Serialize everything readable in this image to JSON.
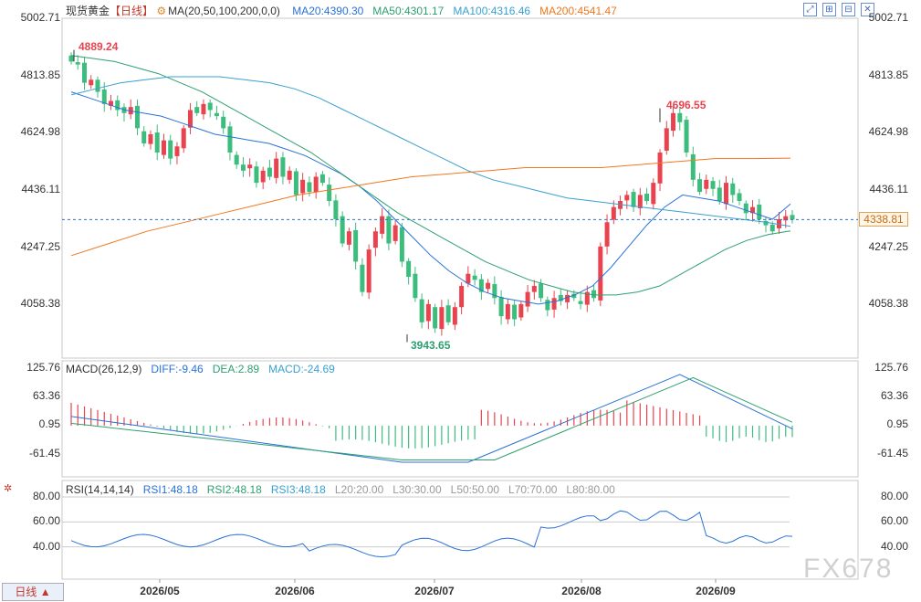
{
  "header": {
    "symbol": "现货黄金",
    "period_label": "【日线】",
    "ma_label": "MA(20,50,100,200,0,0)",
    "ma_values": [
      {
        "text": "MA20:4390.30",
        "color": "#2a72d8"
      },
      {
        "text": "MA50:4301.17",
        "color": "#2ea070"
      },
      {
        "text": "MA100:4316.46",
        "color": "#3aa0d0"
      },
      {
        "text": "MA200:4541.47",
        "color": "#f07820"
      }
    ]
  },
  "toolbar_icons": [
    "expand-icon",
    "tile-icon",
    "split-icon",
    "close-icon"
  ],
  "price_axis": {
    "ticks": [
      "5002.71",
      "4813.85",
      "4624.98",
      "4436.11",
      "4247.25",
      "4058.38"
    ]
  },
  "current_price": "4338.81",
  "annotations": {
    "high": "4889.24",
    "recent_high": "4696.55",
    "low": "3943.65"
  },
  "macd": {
    "header": [
      {
        "text": "MACD(26,12,9)",
        "color": "#333333"
      },
      {
        "text": "DIFF:-9.46",
        "color": "#2a72d8"
      },
      {
        "text": "DEA:2.89",
        "color": "#2ea070"
      },
      {
        "text": "MACD:-24.69",
        "color": "#3aa0d0"
      }
    ],
    "ticks": [
      "125.76",
      "63.36",
      "0.95",
      "-61.45"
    ]
  },
  "rsi": {
    "header": [
      {
        "text": "RSI(14,14,14)",
        "color": "#333333"
      },
      {
        "text": "RSI1:48.18",
        "color": "#2a72d8"
      },
      {
        "text": "RSI2:48.18",
        "color": "#2ea070"
      },
      {
        "text": "RSI3:48.18",
        "color": "#3aa0d0"
      },
      {
        "text": "L20:20.00",
        "color": "#999999"
      },
      {
        "text": "L30:30.00",
        "color": "#999999"
      },
      {
        "text": "L50:50.00",
        "color": "#999999"
      },
      {
        "text": "L70:70.00",
        "color": "#999999"
      },
      {
        "text": "L80:80.00",
        "color": "#999999"
      }
    ],
    "ticks": [
      "80.00",
      "60.00",
      "40.00"
    ]
  },
  "x_axis": {
    "labels": [
      "2026/05",
      "2026/06",
      "2026/07",
      "2026/08",
      "2026/09"
    ]
  },
  "period_button": "日线 ▲",
  "watermark": "FX678",
  "colors": {
    "up": "#e8434f",
    "down": "#3dbd7d",
    "ma20": "#2a72d8",
    "ma50": "#2ea070",
    "ma100": "#3aa0d0",
    "ma200": "#f07820",
    "grid": "#dcdcdc"
  },
  "chart_data": {
    "type": "candlestick",
    "x_labels": [
      "2026/05",
      "2026/06",
      "2026/07",
      "2026/08",
      "2026/09"
    ],
    "price_range": [
      3900,
      5002.71
    ],
    "current_price": 4338.81,
    "candles_close": [
      4860,
      4850,
      4790,
      4800,
      4760,
      4720,
      4730,
      4700,
      4690,
      4710,
      4640,
      4590,
      4620,
      4560,
      4600,
      4540,
      4580,
      4640,
      4700,
      4690,
      4720,
      4700,
      4680,
      4640,
      4560,
      4520,
      4500,
      4520,
      4460,
      4500,
      4480,
      4540,
      4480,
      4500,
      4420,
      4470,
      4430,
      4480,
      4460,
      4400,
      4340,
      4260,
      4300,
      4200,
      4100,
      4240,
      4300,
      4350,
      4260,
      4320,
      4200,
      4150,
      4080,
      4000,
      4060,
      3980,
      4050,
      4000,
      4050,
      4120,
      4160,
      4140,
      4100,
      4130,
      4080,
      4020,
      4060,
      4010,
      4060,
      4100,
      4120,
      4080,
      4040,
      4080,
      4070,
      4090,
      4080,
      4060,
      4100,
      4080,
      4250,
      4330,
      4380,
      4400,
      4420,
      4380,
      4420,
      4400,
      4460,
      4560,
      4640,
      4690,
      4660,
      4560,
      4470,
      4430,
      4470,
      4440,
      4400,
      4460,
      4420,
      4400,
      4360,
      4380,
      4340,
      4320,
      4300,
      4340,
      4350,
      4338.81
    ],
    "series": [
      {
        "name": "MA20",
        "values": [
          4760,
          4740,
          4720,
          4700,
          4690,
          4680,
          4660,
          4640,
          4620,
          4610,
          4600,
          4590,
          4570,
          4550,
          4520,
          4490,
          4450,
          4400,
          4340,
          4280,
          4220,
          4170,
          4130,
          4100,
          4080,
          4070,
          4060,
          4070,
          4090,
          4120,
          4180,
          4250,
          4320,
          4380,
          4420,
          4410,
          4400,
          4380,
          4360,
          4340,
          4390.3
        ]
      },
      {
        "name": "MA50",
        "values": [
          4880,
          4870,
          4860,
          4840,
          4820,
          4790,
          4760,
          4720,
          4680,
          4640,
          4600,
          4560,
          4510,
          4460,
          4410,
          4360,
          4320,
          4280,
          4240,
          4200,
          4170,
          4140,
          4120,
          4100,
          4090,
          4090,
          4100,
          4120,
          4160,
          4200,
          4240,
          4270,
          4290,
          4301.17
        ]
      },
      {
        "name": "MA100",
        "values": [
          4750,
          4770,
          4790,
          4800,
          4810,
          4810,
          4810,
          4800,
          4790,
          4770,
          4740,
          4700,
          4660,
          4620,
          4580,
          4540,
          4500,
          4470,
          4450,
          4430,
          4410,
          4400,
          4390,
          4380,
          4370,
          4360,
          4350,
          4340,
          4330,
          4316.46
        ]
      },
      {
        "name": "MA200",
        "values": [
          4220,
          4260,
          4300,
          4330,
          4360,
          4390,
          4420,
          4440,
          4460,
          4480,
          4490,
          4500,
          4510,
          4510,
          4510,
          4520,
          4530,
          4540,
          4540,
          4541.47
        ]
      }
    ],
    "macd": {
      "range": [
        -100,
        125.76
      ],
      "diff": -9.46,
      "dea": 2.89,
      "macd": -24.69
    },
    "rsi": {
      "range": [
        20,
        80
      ],
      "rsi1": 48.18,
      "rsi2": 48.18,
      "rsi3": 48.18,
      "levels": [
        20,
        30,
        50,
        70,
        80
      ]
    }
  }
}
